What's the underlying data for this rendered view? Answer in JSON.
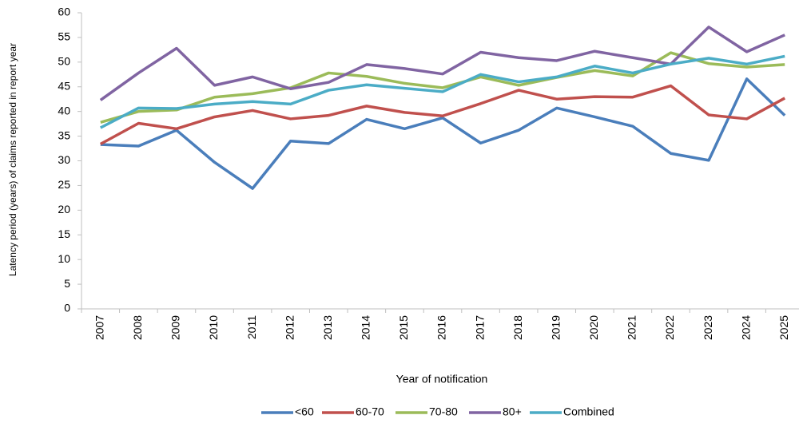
{
  "chart_data": {
    "type": "line",
    "y_label": "Latency period (years) of claims reported in report year",
    "x_label": "Year of notification",
    "categories": [
      "2007",
      "2008",
      "2009",
      "2010",
      "2011",
      "2012",
      "2013",
      "2014",
      "2015",
      "2016",
      "2017",
      "2018",
      "2019",
      "2020",
      "2021",
      "2022",
      "2023",
      "2024",
      "2025"
    ],
    "series": [
      {
        "name": "<60",
        "color": "#4a7ebb",
        "values": [
          33.3,
          33.0,
          36.2,
          29.7,
          24.4,
          34.0,
          33.5,
          38.4,
          36.5,
          38.7,
          33.6,
          36.2,
          40.7,
          38.9,
          37.0,
          31.5,
          30.1,
          46.6,
          39.2
        ]
      },
      {
        "name": "60-70",
        "color": "#c0504d",
        "values": [
          33.4,
          37.6,
          36.5,
          38.9,
          40.2,
          38.5,
          39.2,
          41.1,
          39.8,
          39.1,
          41.6,
          44.3,
          42.5,
          43.0,
          42.9,
          45.2,
          39.3,
          38.5,
          42.7
        ]
      },
      {
        "name": "70-80",
        "color": "#9bbb59",
        "values": [
          37.8,
          40.0,
          40.3,
          42.9,
          43.6,
          44.8,
          47.8,
          47.1,
          45.7,
          44.8,
          47.0,
          45.3,
          46.9,
          48.3,
          47.2,
          51.9,
          49.7,
          49.0,
          49.5
        ]
      },
      {
        "name": "80+",
        "color": "#8064a2",
        "values": [
          42.3,
          47.8,
          52.8,
          45.3,
          47.0,
          44.6,
          45.9,
          49.5,
          48.7,
          47.6,
          52.0,
          50.9,
          50.3,
          52.2,
          50.9,
          49.6,
          57.1,
          52.1,
          55.5
        ]
      },
      {
        "name": "Combined",
        "color": "#4bacc6",
        "values": [
          36.7,
          40.7,
          40.6,
          41.5,
          42.0,
          41.5,
          44.3,
          45.4,
          44.7,
          44.0,
          47.5,
          46.0,
          47.0,
          49.2,
          47.8,
          49.6,
          50.8,
          49.6,
          51.2
        ]
      }
    ],
    "ylim": [
      0,
      60
    ],
    "yticks": [
      0,
      5,
      10,
      15,
      20,
      25,
      30,
      35,
      40,
      45,
      50,
      55,
      60
    ],
    "grid": false,
    "legend": "bottom"
  }
}
